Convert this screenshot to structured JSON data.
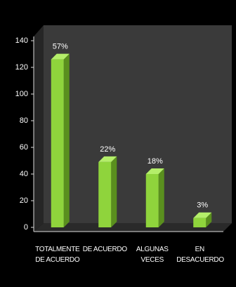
{
  "chart_data": {
    "type": "bar3d",
    "categories": [
      "TOTALMENTE DE ACUERDO",
      "DE ACUERDO",
      "ALGUNAS VECES",
      "EN DESACUERDO"
    ],
    "values": [
      126,
      49,
      40,
      7
    ],
    "value_labels": [
      "57%",
      "22%",
      "18%",
      "3%"
    ],
    "color": "#8fd43c",
    "ylim": [
      0,
      140
    ],
    "yticks": [
      0,
      20,
      40,
      60,
      80,
      100,
      120,
      140
    ]
  }
}
